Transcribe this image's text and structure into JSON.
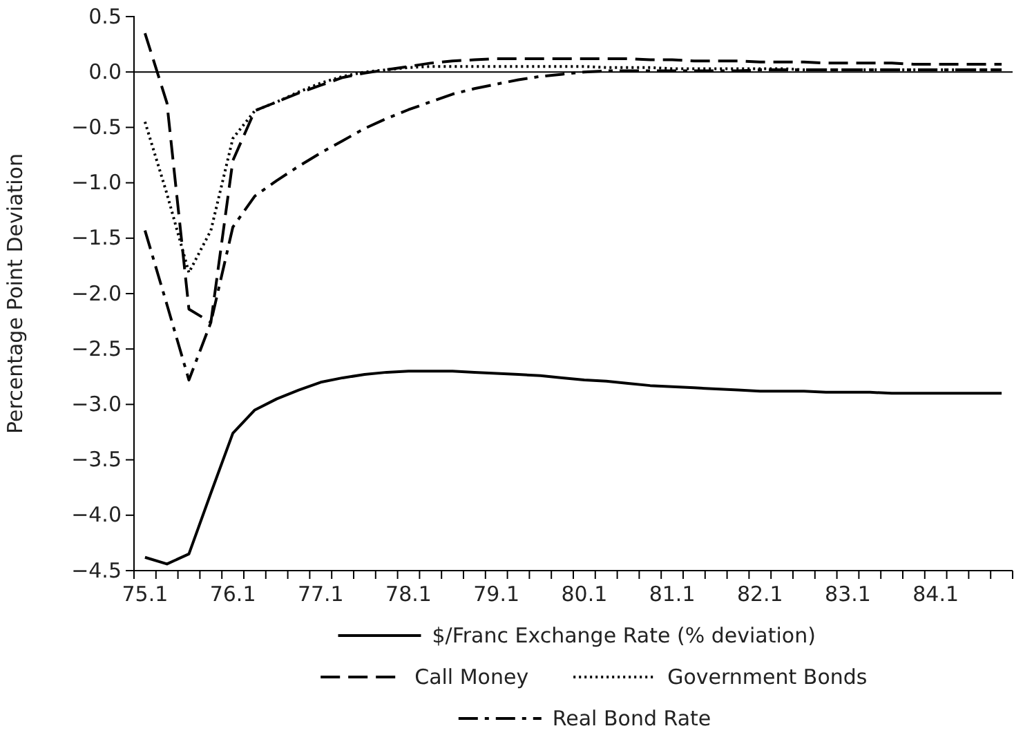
{
  "chart_data": {
    "type": "line",
    "ylabel": "Percentage Point Deviation",
    "categories": [
      "75.1",
      null,
      null,
      null,
      "76.1",
      null,
      null,
      null,
      "77.1",
      null,
      null,
      null,
      "78.1",
      null,
      null,
      null,
      "79.1",
      null,
      null,
      null,
      "80.1",
      null,
      null,
      null,
      "81.1",
      null,
      null,
      null,
      "82.1",
      null,
      null,
      null,
      "83.1",
      null,
      null,
      null,
      "84.1",
      null,
      null,
      null
    ],
    "ylim": [
      -4.5,
      0.5
    ],
    "yticks": [
      {
        "value": 0.5,
        "label": "0.5"
      },
      {
        "value": 0,
        "label": "0.0"
      },
      {
        "value": -0.5,
        "label": "−0.5"
      },
      {
        "value": -1,
        "label": "−1.0"
      },
      {
        "value": -1.5,
        "label": "−1.5"
      },
      {
        "value": -2,
        "label": "−2.0"
      },
      {
        "value": -2.5,
        "label": "−2.5"
      },
      {
        "value": -3,
        "label": "−3.0"
      },
      {
        "value": -3.5,
        "label": "−3.5"
      },
      {
        "value": -4,
        "label": "−4.0"
      },
      {
        "value": -4.5,
        "label": "−4.5"
      }
    ],
    "ref_lines": [
      {
        "axis": "y",
        "value": 0,
        "color": "#000000"
      }
    ],
    "legend": "bottom",
    "series": [
      {
        "name": "$/Franc Exchange Rate (% deviation)",
        "color": "#000000",
        "line_style": "solid",
        "values": [
          -4.38,
          -4.44,
          -4.35,
          -3.8,
          -3.26,
          -3.05,
          -2.95,
          -2.87,
          -2.8,
          -2.76,
          -2.73,
          -2.71,
          -2.7,
          -2.7,
          -2.7,
          -2.71,
          -2.72,
          -2.73,
          -2.74,
          -2.76,
          -2.78,
          -2.79,
          -2.81,
          -2.83,
          -2.84,
          -2.85,
          -2.86,
          -2.87,
          -2.88,
          -2.88,
          -2.88,
          -2.89,
          -2.89,
          -2.89,
          -2.9,
          -2.9,
          -2.9,
          -2.9,
          -2.9,
          -2.9
        ]
      },
      {
        "name": "Call Money",
        "color": "#000000",
        "line_style": "dashed",
        "values": [
          0.35,
          -0.28,
          -2.14,
          -2.26,
          -0.8,
          -0.35,
          -0.27,
          -0.19,
          -0.12,
          -0.05,
          -0.01,
          0.02,
          0.05,
          0.08,
          0.1,
          0.11,
          0.12,
          0.12,
          0.12,
          0.12,
          0.12,
          0.12,
          0.12,
          0.11,
          0.11,
          0.1,
          0.1,
          0.1,
          0.09,
          0.09,
          0.09,
          0.08,
          0.08,
          0.08,
          0.08,
          0.07,
          0.07,
          0.07,
          0.07,
          0.07
        ]
      },
      {
        "name": "Government Bonds",
        "color": "#000000",
        "line_style": "dotted",
        "values": [
          -0.45,
          -1.1,
          -1.81,
          -1.43,
          -0.6,
          -0.35,
          -0.27,
          -0.18,
          -0.1,
          -0.04,
          0,
          0.02,
          0.04,
          0.05,
          0.05,
          0.05,
          0.05,
          0.05,
          0.05,
          0.05,
          0.05,
          0.04,
          0.04,
          0.04,
          0.03,
          0.03,
          0.03,
          0.03,
          0.03,
          0.03,
          0.02,
          0.02,
          0.02,
          0.02,
          0.02,
          0.02,
          0.02,
          0.02,
          0.02,
          0.02
        ]
      },
      {
        "name": "Real Bond Rate",
        "color": "#000000",
        "line_style": "dashdot",
        "values": [
          -1.43,
          -2.1,
          -2.78,
          -2.26,
          -1.4,
          -1.12,
          -0.98,
          -0.85,
          -0.73,
          -0.62,
          -0.51,
          -0.42,
          -0.34,
          -0.27,
          -0.2,
          -0.15,
          -0.11,
          -0.07,
          -0.04,
          -0.02,
          0,
          0.01,
          0.01,
          0.01,
          0.01,
          0.01,
          0.01,
          0.01,
          0.02,
          0.02,
          0.02,
          0.02,
          0.02,
          0.02,
          0.02,
          0.02,
          0.02,
          0.02,
          0.02,
          0.02
        ]
      }
    ]
  }
}
